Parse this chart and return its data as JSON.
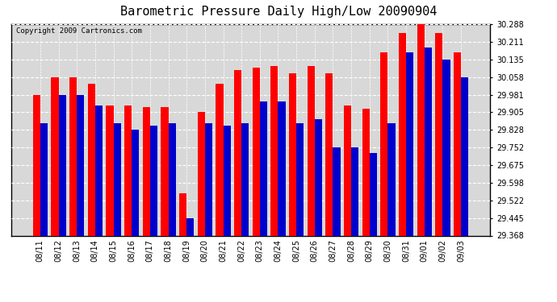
{
  "title": "Barometric Pressure Daily High/Low 20090904",
  "copyright": "Copyright 2009 Cartronics.com",
  "dates": [
    "08/11",
    "08/12",
    "08/13",
    "08/14",
    "08/15",
    "08/16",
    "08/17",
    "08/18",
    "08/19",
    "08/20",
    "08/21",
    "08/22",
    "08/23",
    "08/24",
    "08/25",
    "08/26",
    "08/27",
    "08/28",
    "08/29",
    "08/30",
    "08/31",
    "09/01",
    "09/02",
    "09/03"
  ],
  "highs": [
    29.981,
    30.058,
    30.058,
    30.028,
    29.935,
    29.935,
    29.928,
    29.928,
    29.551,
    29.905,
    30.028,
    30.088,
    30.098,
    30.105,
    30.075,
    30.105,
    30.075,
    29.935,
    29.921,
    30.165,
    30.248,
    30.288,
    30.248,
    30.165
  ],
  "lows": [
    29.858,
    29.981,
    29.981,
    29.935,
    29.858,
    29.828,
    29.845,
    29.858,
    29.445,
    29.858,
    29.845,
    29.858,
    29.951,
    29.951,
    29.858,
    29.875,
    29.752,
    29.752,
    29.728,
    29.858,
    30.165,
    30.188,
    30.135,
    30.058
  ],
  "high_color": "#ff0000",
  "low_color": "#0000cc",
  "bg_color": "#ffffff",
  "plot_bg_color": "#d8d8d8",
  "ylim_min": 29.368,
  "ylim_max": 30.288,
  "yticks": [
    29.368,
    29.445,
    29.522,
    29.598,
    29.675,
    29.752,
    29.828,
    29.905,
    29.981,
    30.058,
    30.135,
    30.211,
    30.288
  ],
  "grid_color": "#ffffff",
  "grid_style": "--",
  "bar_width": 0.4,
  "title_fontsize": 11,
  "tick_fontsize": 7,
  "copyright_fontsize": 6.5
}
